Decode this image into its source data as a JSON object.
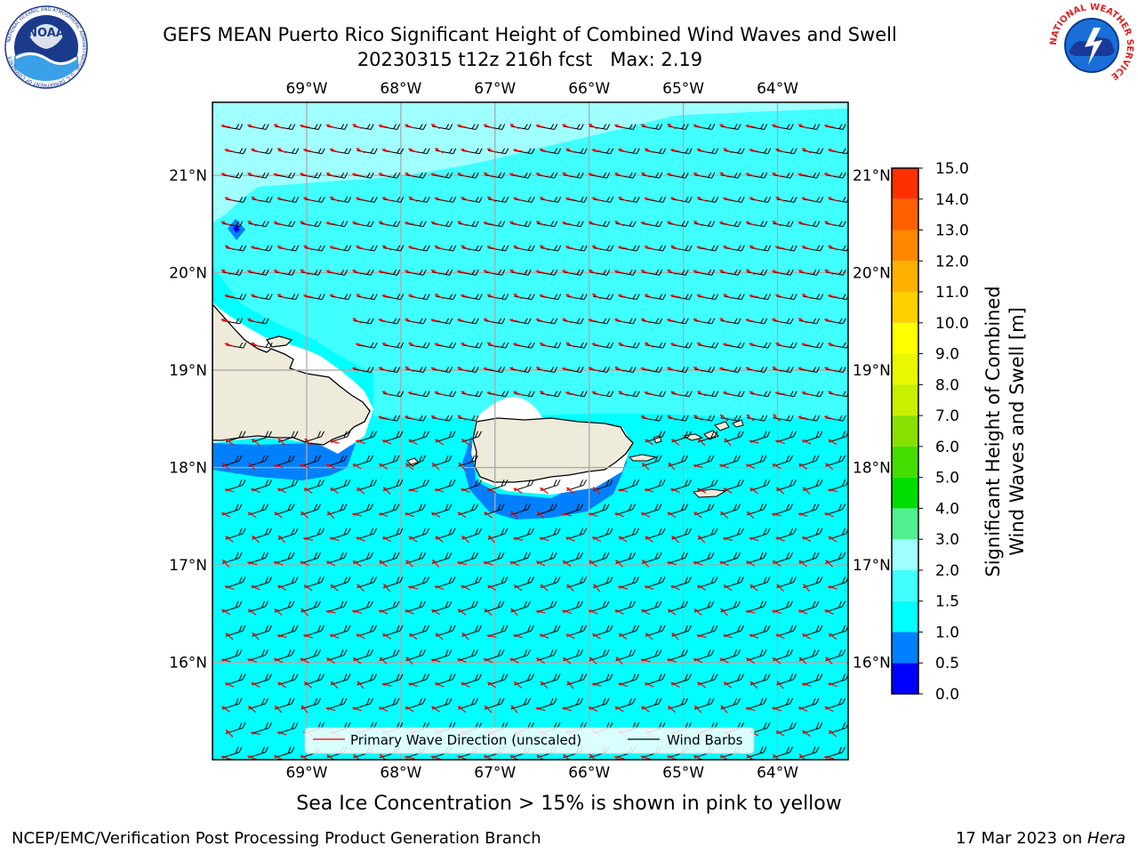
{
  "header": {
    "title_line1": "GEFS MEAN Puerto Rico Significant Height of Combined Wind Waves and Swell",
    "title_line2": "20230315 t12z 216h fcst   Max: 2.19"
  },
  "logos": {
    "noaa_text": "NOAA",
    "noaa_ring": "NATIONAL OCEANIC AND ATMOSPHERIC ADMINISTRATION · U.S. DEPARTMENT OF COMMERCE",
    "nws_ring": "NATIONAL WEATHER SERVICE"
  },
  "map": {
    "lon_labels": [
      "69°W",
      "68°W",
      "67°W",
      "66°W",
      "65°W",
      "64°W"
    ],
    "lon_values": [
      -69,
      -68,
      -67,
      -66,
      -65,
      -64
    ],
    "lat_labels": [
      "21°N",
      "20°N",
      "19°N",
      "18°N",
      "17°N",
      "16°N"
    ],
    "lat_values": [
      21,
      20,
      19,
      18,
      17,
      16
    ],
    "extent": {
      "lon_min": -70,
      "lon_max": -63.25,
      "lat_min": 15,
      "lat_max": 21.75
    },
    "ocean_color": "#00ffff",
    "land_color": "#efebdb"
  },
  "legend": {
    "wave_label": "Primary Wave Direction (unscaled)",
    "wind_label": "Wind Barbs",
    "wave_color": "#ff0000",
    "wind_color": "#000000"
  },
  "colorbar": {
    "title_line1": "Significant Height of Combined",
    "title_line2": "Wind Waves and Swell [m]",
    "ticks": [
      "0.0",
      "0.5",
      "1.0",
      "1.5",
      "2.0",
      "3.0",
      "4.0",
      "5.0",
      "6.0",
      "7.0",
      "8.0",
      "9.0",
      "10.0",
      "11.0",
      "12.0",
      "13.0",
      "14.0",
      "15.0"
    ],
    "colors": [
      "#0000ff",
      "#0080ff",
      "#00ffff",
      "#40ffff",
      "#a0ffff",
      "#50f090",
      "#00dd00",
      "#44dd00",
      "#88e000",
      "#c8f000",
      "#e8f800",
      "#ffff00",
      "#ffd000",
      "#ffb000",
      "#ff8800",
      "#ff6000",
      "#ff3000",
      "#ff0000"
    ]
  },
  "subnote": "Sea Ice Concentration > 15% is shown in pink to yellow",
  "footer": {
    "left": "NCEP/EMC/Verification Post Processing Product Generation Branch",
    "date": "17 Mar 2023 on ",
    "host": "Hera"
  }
}
